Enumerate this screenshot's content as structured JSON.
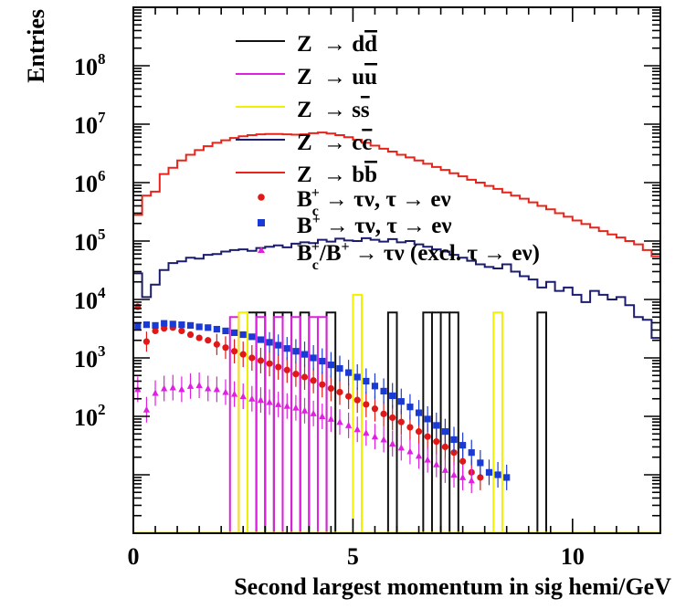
{
  "chart_data": {
    "type": "line",
    "xlabel": "Second largest momentum in sig hemi/GeV",
    "ylabel": "Entries",
    "xlim": [
      0,
      12
    ],
    "ylim": [
      1,
      1000000000
    ],
    "yscale": "log",
    "grid": false,
    "legend_position": "top-right",
    "x_ticks": [
      {
        "value": 0,
        "label": "0"
      },
      {
        "value": 5,
        "label": "5"
      },
      {
        "value": 10,
        "label": "10"
      }
    ],
    "y_ticks": [
      {
        "value": 100,
        "base": "10",
        "exp": "2"
      },
      {
        "value": 1000,
        "base": "10",
        "exp": "3"
      },
      {
        "value": 10000,
        "base": "10",
        "exp": "4"
      },
      {
        "value": 100000,
        "base": "10",
        "exp": "5"
      },
      {
        "value": 1000000,
        "base": "10",
        "exp": "6"
      },
      {
        "value": 10000000,
        "base": "10",
        "exp": "7"
      },
      {
        "value": 100000000,
        "base": "10",
        "exp": "8"
      }
    ],
    "bin_width": 0.2,
    "hist_series": [
      {
        "key": "zbb",
        "color": "#e8241a",
        "bins": [
          [
            0.0,
            280000
          ],
          [
            0.2,
            600000
          ],
          [
            0.4,
            700000
          ],
          [
            0.6,
            1400000
          ],
          [
            0.8,
            1800000
          ],
          [
            1.0,
            2400000
          ],
          [
            1.2,
            3000000
          ],
          [
            1.4,
            3600000
          ],
          [
            1.6,
            4200000
          ],
          [
            1.8,
            4800000
          ],
          [
            2.0,
            5300000
          ],
          [
            2.2,
            5800000
          ],
          [
            2.4,
            6200000
          ],
          [
            2.6,
            6500000
          ],
          [
            2.8,
            6700000
          ],
          [
            3.0,
            6800000
          ],
          [
            3.2,
            6800000
          ],
          [
            3.4,
            6700000
          ],
          [
            3.6,
            6600000
          ],
          [
            3.8,
            6700000
          ],
          [
            4.0,
            7000000
          ],
          [
            4.2,
            7200000
          ],
          [
            4.4,
            6900000
          ],
          [
            4.6,
            6500000
          ],
          [
            4.8,
            6000000
          ],
          [
            5.0,
            5400000
          ],
          [
            5.2,
            4800000
          ],
          [
            5.4,
            4300000
          ],
          [
            5.6,
            3800000
          ],
          [
            5.8,
            3400000
          ],
          [
            6.0,
            3000000
          ],
          [
            6.2,
            2700000
          ],
          [
            6.4,
            2400000
          ],
          [
            6.6,
            2100000
          ],
          [
            6.8,
            1850000
          ],
          [
            7.0,
            1650000
          ],
          [
            7.2,
            1450000
          ],
          [
            7.4,
            1280000
          ],
          [
            7.6,
            1120000
          ],
          [
            7.8,
            1000000
          ],
          [
            8.0,
            880000
          ],
          [
            8.2,
            780000
          ],
          [
            8.4,
            680000
          ],
          [
            8.6,
            600000
          ],
          [
            8.8,
            530000
          ],
          [
            9.0,
            460000
          ],
          [
            9.2,
            400000
          ],
          [
            9.4,
            350000
          ],
          [
            9.6,
            300000
          ],
          [
            9.8,
            260000
          ],
          [
            10.0,
            225000
          ],
          [
            10.2,
            195000
          ],
          [
            10.4,
            170000
          ],
          [
            10.6,
            148000
          ],
          [
            10.8,
            130000
          ],
          [
            11.0,
            115000
          ],
          [
            11.2,
            100000
          ],
          [
            11.4,
            88000
          ],
          [
            11.6,
            70000
          ],
          [
            11.8,
            55000
          ]
        ]
      },
      {
        "key": "zcc",
        "color": "#1c1c6e",
        "bins": [
          [
            0.0,
            28000
          ],
          [
            0.2,
            11000
          ],
          [
            0.4,
            18000
          ],
          [
            0.6,
            32000
          ],
          [
            0.8,
            42000
          ],
          [
            1.0,
            45000
          ],
          [
            1.2,
            52000
          ],
          [
            1.4,
            50000
          ],
          [
            1.6,
            58000
          ],
          [
            1.8,
            60000
          ],
          [
            2.0,
            66000
          ],
          [
            2.2,
            70000
          ],
          [
            2.4,
            72000
          ],
          [
            2.6,
            68000
          ],
          [
            2.8,
            76000
          ],
          [
            3.0,
            80000
          ],
          [
            3.2,
            84000
          ],
          [
            3.4,
            78000
          ],
          [
            3.6,
            90000
          ],
          [
            3.8,
            95000
          ],
          [
            4.0,
            92000
          ],
          [
            4.2,
            105000
          ],
          [
            4.4,
            98000
          ],
          [
            4.6,
            110000
          ],
          [
            4.8,
            102000
          ],
          [
            5.0,
            100000
          ],
          [
            5.2,
            112000
          ],
          [
            5.4,
            105000
          ],
          [
            5.6,
            98000
          ],
          [
            5.8,
            108000
          ],
          [
            6.0,
            95000
          ],
          [
            6.2,
            100000
          ],
          [
            6.4,
            88000
          ],
          [
            6.6,
            80000
          ],
          [
            6.8,
            72000
          ],
          [
            7.0,
            66000
          ],
          [
            7.2,
            58000
          ],
          [
            7.4,
            52000
          ],
          [
            7.6,
            46000
          ],
          [
            7.8,
            40000
          ],
          [
            8.0,
            36000
          ],
          [
            8.2,
            34000
          ],
          [
            8.4,
            40000
          ],
          [
            8.6,
            30000
          ],
          [
            8.8,
            25000
          ],
          [
            9.0,
            22000
          ],
          [
            9.2,
            16000
          ],
          [
            9.4,
            20000
          ],
          [
            9.6,
            14000
          ],
          [
            9.8,
            16000
          ],
          [
            10.0,
            12000
          ],
          [
            10.2,
            9000
          ],
          [
            10.4,
            14000
          ],
          [
            10.6,
            12000
          ],
          [
            10.8,
            10000
          ],
          [
            11.0,
            11000
          ],
          [
            11.2,
            8000
          ],
          [
            11.4,
            5000
          ],
          [
            11.6,
            4500
          ],
          [
            11.8,
            2200
          ]
        ]
      },
      {
        "key": "zdd",
        "color": "#111111",
        "bins": [
          [
            2.6,
            6000
          ],
          [
            2.8,
            6000
          ],
          [
            3.2,
            6000
          ],
          [
            3.4,
            6000
          ],
          [
            3.8,
            6000
          ],
          [
            4.4,
            6000
          ],
          [
            5.8,
            6000
          ],
          [
            6.6,
            6000
          ],
          [
            6.8,
            6000
          ],
          [
            7.0,
            6000
          ],
          [
            7.2,
            6000
          ],
          [
            9.2,
            6000
          ]
        ]
      },
      {
        "key": "zuu",
        "color": "#e020e0",
        "bins": [
          [
            2.2,
            5000
          ],
          [
            2.8,
            5000
          ],
          [
            3.2,
            5000
          ],
          [
            3.6,
            5000
          ],
          [
            4.0,
            5000
          ],
          [
            4.2,
            5000
          ]
        ]
      },
      {
        "key": "zss",
        "color": "#f0f000",
        "bins": [
          [
            2.4,
            6000
          ],
          [
            5.0,
            12000
          ],
          [
            8.2,
            6000
          ]
        ]
      }
    ],
    "marker_series": [
      {
        "key": "bc",
        "color": "#e01818",
        "marker": "circle",
        "points": [
          [
            0.1,
            7500
          ],
          [
            0.3,
            1900
          ],
          [
            0.5,
            2900
          ],
          [
            0.7,
            3200
          ],
          [
            0.9,
            3300
          ],
          [
            1.1,
            2900
          ],
          [
            1.3,
            2500
          ],
          [
            1.5,
            2200
          ],
          [
            1.7,
            2000
          ],
          [
            1.9,
            1700
          ],
          [
            2.1,
            1500
          ],
          [
            2.3,
            1300
          ],
          [
            2.5,
            1150
          ],
          [
            2.7,
            1000
          ],
          [
            2.9,
            900
          ],
          [
            3.1,
            800
          ],
          [
            3.3,
            700
          ],
          [
            3.5,
            620
          ],
          [
            3.7,
            530
          ],
          [
            3.9,
            470
          ],
          [
            4.1,
            410
          ],
          [
            4.3,
            350
          ],
          [
            4.5,
            300
          ],
          [
            4.7,
            260
          ],
          [
            4.9,
            220
          ],
          [
            5.1,
            190
          ],
          [
            5.3,
            160
          ],
          [
            5.5,
            135
          ],
          [
            5.7,
            110
          ],
          [
            5.9,
            95
          ],
          [
            6.1,
            80
          ],
          [
            6.3,
            65
          ],
          [
            6.5,
            55
          ],
          [
            6.7,
            45
          ],
          [
            6.9,
            37
          ],
          [
            7.1,
            30
          ],
          [
            7.3,
            24
          ],
          [
            7.5,
            17
          ],
          [
            7.7,
            11
          ],
          [
            7.9,
            9
          ]
        ]
      },
      {
        "key": "bplus",
        "color": "#1a3ad6",
        "marker": "square",
        "points": [
          [
            0.1,
            3500
          ],
          [
            0.3,
            3700
          ],
          [
            0.5,
            3600
          ],
          [
            0.7,
            3900
          ],
          [
            0.9,
            3800
          ],
          [
            1.1,
            3700
          ],
          [
            1.3,
            3600
          ],
          [
            1.5,
            3400
          ],
          [
            1.7,
            3300
          ],
          [
            1.9,
            3100
          ],
          [
            2.1,
            2900
          ],
          [
            2.3,
            2700
          ],
          [
            2.5,
            2500
          ],
          [
            2.7,
            2300
          ],
          [
            2.9,
            2050
          ],
          [
            3.1,
            1850
          ],
          [
            3.3,
            1650
          ],
          [
            3.5,
            1450
          ],
          [
            3.7,
            1300
          ],
          [
            3.9,
            1150
          ],
          [
            4.1,
            1000
          ],
          [
            4.3,
            880
          ],
          [
            4.5,
            760
          ],
          [
            4.7,
            660
          ],
          [
            4.9,
            560
          ],
          [
            5.1,
            470
          ],
          [
            5.3,
            400
          ],
          [
            5.5,
            330
          ],
          [
            5.7,
            270
          ],
          [
            5.9,
            225
          ],
          [
            6.1,
            180
          ],
          [
            6.3,
            145
          ],
          [
            6.5,
            115
          ],
          [
            6.7,
            90
          ],
          [
            6.9,
            70
          ],
          [
            7.1,
            55
          ],
          [
            7.3,
            40
          ],
          [
            7.5,
            32
          ],
          [
            7.7,
            24
          ],
          [
            7.9,
            16
          ],
          [
            8.1,
            11
          ],
          [
            8.3,
            10
          ],
          [
            8.5,
            9
          ]
        ]
      },
      {
        "key": "tau",
        "color": "#e020e0",
        "marker": "triangle",
        "points": [
          [
            0.1,
            290
          ],
          [
            0.3,
            130
          ],
          [
            0.5,
            250
          ],
          [
            0.7,
            300
          ],
          [
            0.9,
            310
          ],
          [
            1.1,
            290
          ],
          [
            1.3,
            330
          ],
          [
            1.5,
            340
          ],
          [
            1.7,
            300
          ],
          [
            1.9,
            290
          ],
          [
            2.1,
            260
          ],
          [
            2.3,
            240
          ],
          [
            2.5,
            220
          ],
          [
            2.7,
            200
          ],
          [
            2.9,
            190
          ],
          [
            3.1,
            175
          ],
          [
            3.3,
            160
          ],
          [
            3.5,
            150
          ],
          [
            3.7,
            140
          ],
          [
            3.9,
            125
          ],
          [
            4.1,
            112
          ],
          [
            4.3,
            100
          ],
          [
            4.5,
            90
          ],
          [
            4.7,
            80
          ],
          [
            4.9,
            70
          ],
          [
            5.1,
            60
          ],
          [
            5.3,
            52
          ],
          [
            5.5,
            45
          ],
          [
            5.7,
            40
          ],
          [
            5.9,
            34
          ],
          [
            6.1,
            29
          ],
          [
            6.3,
            25
          ],
          [
            6.5,
            21
          ],
          [
            6.7,
            18
          ],
          [
            6.9,
            15
          ],
          [
            7.1,
            12
          ],
          [
            7.3,
            10
          ],
          [
            7.5,
            9
          ],
          [
            7.7,
            8
          ]
        ]
      }
    ],
    "legend": [
      {
        "key": "zdd",
        "kind": "line",
        "color": "#111111",
        "text": "Z  → dd̄"
      },
      {
        "key": "zuu",
        "kind": "line",
        "color": "#e020e0",
        "text": "Z  → uū"
      },
      {
        "key": "zss",
        "kind": "line",
        "color": "#f0f000",
        "text": "Z  → ss̄"
      },
      {
        "key": "zcc",
        "kind": "line",
        "color": "#1c1c6e",
        "text": "Z  → cc̄"
      },
      {
        "key": "zbb",
        "kind": "line",
        "color": "#e8241a",
        "text": "Z  → bb̄"
      },
      {
        "key": "bc",
        "kind": "circle",
        "color": "#e01818",
        "text": "B c + → τν, τ → eν"
      },
      {
        "key": "bplus",
        "kind": "square",
        "color": "#1a3ad6",
        "text": "B+ → τν, τ → eν"
      },
      {
        "key": "tau",
        "kind": "triangle",
        "color": "#e020e0",
        "text": "B c + /B+ → τν (excl. τ → eν)"
      }
    ]
  }
}
